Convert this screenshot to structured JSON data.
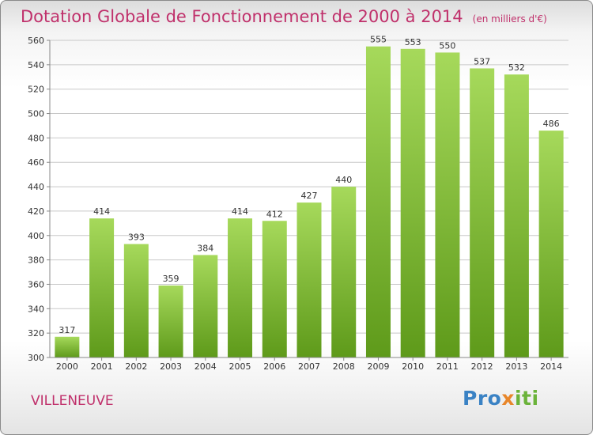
{
  "header": {
    "title": "Dotation Globale de Fonctionnement de 2000 à 2014",
    "subtitle": "(en milliers d'€)"
  },
  "footer": {
    "commune": "VILLENEUVE",
    "logo": "Proxiti"
  },
  "colors": {
    "title": "#c0306b",
    "bar_light": "#a6d95b",
    "bar_dark": "#5e9a1a"
  },
  "chart_data": {
    "type": "bar",
    "title": "Dotation Globale de Fonctionnement de 2000 à 2014",
    "subtitle": "(en milliers d'€)",
    "categories": [
      "2000",
      "2001",
      "2002",
      "2003",
      "2004",
      "2005",
      "2006",
      "2007",
      "2008",
      "2009",
      "2010",
      "2011",
      "2012",
      "2013",
      "2014"
    ],
    "values": [
      317,
      414,
      393,
      359,
      384,
      414,
      412,
      427,
      440,
      555,
      553,
      550,
      537,
      532,
      486
    ],
    "ylim": [
      300,
      560
    ],
    "yticks": [
      300,
      320,
      340,
      360,
      380,
      400,
      420,
      440,
      460,
      480,
      500,
      520,
      540,
      560
    ],
    "grid": true,
    "data_labels": true
  }
}
